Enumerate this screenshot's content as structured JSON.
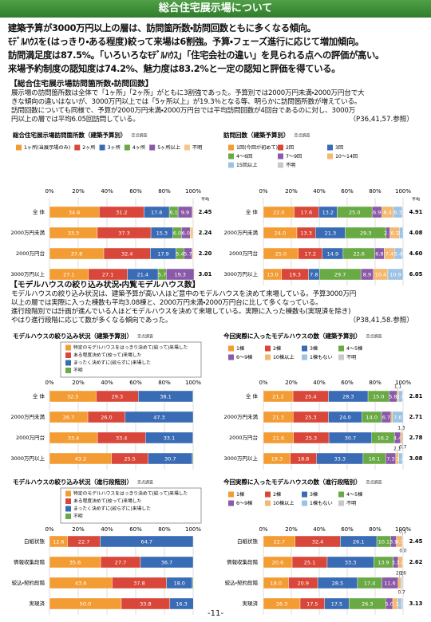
{
  "header": "総合住宅展示場について",
  "summary": [
    "建築予算が3000万円以上の層は、訪問箇所数・訪問回数ともに多くなる傾向。",
    "ﾓﾃﾞﾙﾊｳｽを(はっきり・ある程度)絞って来場は6割強。予算・フェーズ進行に応じて増加傾向。",
    "訪問満足度は87.5%。「いろいろなﾓﾃﾞﾙﾊｳｽ」「住宅会社の違い」を見られる点への評価が高い。",
    "来場予約制度の認知度は74.2%、魅力度は83.2%と一定の認知と評価を得ている。"
  ],
  "sections": [
    {
      "title": "【総合住宅展示場訪問箇所数・訪問回数】",
      "lines": [
        "展示場の訪問箇所数は全体で「1ヶ所」「2ヶ所」がともに3割強であった。予算別では2000万円未満・2000万円台で大",
        "きな傾向の違いはないが、3000万円以上では「5ヶ所以上」が19.3％となる等、明らかに訪問箇所数が増えている。",
        "訪問回数についても同様で、予算が2000万円未満・2000万円台では平均訪問回数が4回台であるのに対し、3000万",
        "円以上の層では平均6.05回訪問している。"
      ],
      "reference": "（P36,41,57.参照）"
    },
    {
      "title": "【モデルハウスの絞り込み状況・内覧モデルハウス数】",
      "lines": [
        "モデルハウスの絞り込み状況は、建築予算が高い人ほど意中のモデルハウスを決めて来場している。予算3000万円",
        "以上の層では実際に入った棟数も平均3.08棟と、2000万円未満・2000万円台に比して多くなっている。",
        "進行段階別では計画が進んでいる人ほどモデルハウスを決めて来場している。実際に入った棟数も(実現済を除き)",
        "やはり進行段階に応じて数が多くなる傾向であった。"
      ],
      "reference": "（P38,41,58.参照）"
    }
  ],
  "page_number": "-11-",
  "chart_data": [
    {
      "type": "bar",
      "orientation": "horizontal",
      "stacked": true,
      "grid": true,
      "title": "総合住宅展示場訪問箇所数（建築予算別）",
      "subtitle": "定点調査",
      "categories": [
        "全 体",
        "2000万円未満",
        "2000万円台",
        "3000万円以上"
      ],
      "xlim": [
        0,
        100
      ],
      "xticks": [
        {
          "value": 0,
          "label": "0%"
        },
        {
          "value": 20,
          "label": "20%"
        },
        {
          "value": 40,
          "label": "40%"
        },
        {
          "value": 60,
          "label": "60%"
        },
        {
          "value": 80,
          "label": "80%"
        },
        {
          "value": 100,
          "label": "100%"
        }
      ],
      "average_header": "平均",
      "averages": [
        "2.45",
        "2.24",
        "2.20",
        "3.01"
      ],
      "series": [
        {
          "name": "1ヶ所(当展示場のみ)",
          "color": "#f39c34",
          "values": [
            34.6,
            33.3,
            37.8,
            27.1
          ],
          "value_labels": [
            "34.6",
            "33.3",
            "37.8",
            "27.1"
          ]
        },
        {
          "name": "2ヶ所",
          "color": "#d9473a",
          "values": [
            31.2,
            37.3,
            32.4,
            27.1
          ],
          "value_labels": [
            "31.2",
            "37.3",
            "32.4",
            "27.1"
          ]
        },
        {
          "name": "3ヶ所",
          "color": "#3a6cb5",
          "values": [
            17.6,
            15.3,
            17.9,
            21.4
          ],
          "value_labels": [
            "17.6",
            "15.3",
            "17.9",
            "21.4"
          ]
        },
        {
          "name": "4ヶ所",
          "color": "#6aaa45",
          "values": [
            6.1,
            6.0,
            5.4,
            5.7
          ],
          "value_labels": [
            "6.1",
            "6.0",
            "5.4",
            "5.7"
          ]
        },
        {
          "name": "5ヶ所以上",
          "color": "#8a5aa8",
          "values": [
            9.9,
            6.0,
            5.7,
            19.3
          ],
          "value_labels": [
            "9.9",
            "6.0",
            "5.7",
            "19.3"
          ]
        },
        {
          "name": "不明",
          "color": "#f6c68a",
          "values": [
            0.6,
            2.1,
            0.8,
            0.4
          ],
          "value_labels": [
            null,
            null,
            null,
            null
          ]
        }
      ]
    },
    {
      "type": "bar",
      "orientation": "horizontal",
      "stacked": true,
      "grid": true,
      "title": "訪問回数（建築予算別）",
      "subtitle": "定点調査",
      "categories": [
        "全 体",
        "2000万円未満",
        "2000万円台",
        "3000万円以上"
      ],
      "xlim": [
        0,
        100
      ],
      "xticks": [
        {
          "value": 0,
          "label": "0%"
        },
        {
          "value": 20,
          "label": "20%"
        },
        {
          "value": 40,
          "label": "40%"
        },
        {
          "value": 60,
          "label": "60%"
        },
        {
          "value": 80,
          "label": "80%"
        },
        {
          "value": 100,
          "label": "100%"
        }
      ],
      "average_header": "平均",
      "averages": [
        "4.91",
        "4.08",
        "4.60",
        "6.05"
      ],
      "series": [
        {
          "name": "1回(今回が初めて)",
          "color": "#f39c34",
          "values": [
            22.0,
            24.0,
            25.0,
            13.0
          ],
          "value_labels": [
            "22.0",
            "24.0",
            "25.0",
            "13.0"
          ]
        },
        {
          "name": "2回",
          "color": "#d9473a",
          "values": [
            17.6,
            13.3,
            17.2,
            19.3
          ],
          "value_labels": [
            "17.6",
            "13.3",
            "17.2",
            "19.3"
          ]
        },
        {
          "name": "3回",
          "color": "#3a6cb5",
          "values": [
            13.2,
            21.3,
            14.9,
            7.8
          ],
          "value_labels": [
            "13.2",
            "21.3",
            "14.9",
            "7.8"
          ]
        },
        {
          "name": "4〜6回",
          "color": "#6aaa45",
          "values": [
            25.0,
            29.3,
            22.6,
            29.7
          ],
          "value_labels": [
            "25.0",
            "29.3",
            "22.6",
            "29.7"
          ]
        },
        {
          "name": "7〜9回",
          "color": "#8a5aa8",
          "values": [
            6.9,
            2.7,
            6.8,
            8.9
          ],
          "value_labels": [
            "6.9",
            "2.7",
            "6.8",
            "8.9"
          ]
        },
        {
          "name": "10〜14回",
          "color": "#f4b870",
          "values": [
            8.4,
            6.7,
            7.4,
            10.4
          ],
          "value_labels": [
            "8.4",
            "6.7",
            "7.4",
            "10.4"
          ]
        },
        {
          "name": "15回以上",
          "color": "#9cc3e6",
          "values": [
            6.3,
            2.7,
            5.4,
            10.9
          ],
          "value_labels": [
            "6.3",
            "2.7",
            "5.4",
            "10.9"
          ]
        },
        {
          "name": "不明",
          "color": "#c8c8c8",
          "values": [
            0.6,
            0,
            0.7,
            0
          ],
          "value_labels": [
            null,
            null,
            null,
            null
          ]
        }
      ]
    },
    {
      "type": "bar",
      "orientation": "horizontal",
      "stacked": true,
      "grid": true,
      "title": "モデルハウスの絞り込み状況（建築予算別）",
      "subtitle": "定点調査",
      "categories": [
        "全 体",
        "2000万円未満",
        "2000万円台",
        "3000万円以上"
      ],
      "xlim": [
        0,
        100
      ],
      "xticks": [
        {
          "value": 0,
          "label": "0%"
        },
        {
          "value": 20,
          "label": "20%"
        },
        {
          "value": 40,
          "label": "40%"
        },
        {
          "value": 60,
          "label": "60%"
        },
        {
          "value": 80,
          "label": "80%"
        },
        {
          "value": 100,
          "label": "100%"
        }
      ],
      "series": [
        {
          "name": "特定のモデルハウスをはっきり決めて(絞って)来場した",
          "color": "#f39c34",
          "values": [
            32.5,
            26.7,
            33.4,
            43.2
          ],
          "value_labels": [
            "32.5",
            "26.7",
            "33.4",
            "43.2"
          ]
        },
        {
          "name": "ある程度決めて(絞って)来場した",
          "color": "#d9473a",
          "values": [
            29.3,
            26.0,
            33.4,
            25.5
          ],
          "value_labels": [
            "29.3",
            "26.0",
            "33.4",
            "25.5"
          ]
        },
        {
          "name": "まったく決めずに(絞らずに)来場した",
          "color": "#3a6cb5",
          "values": [
            38.1,
            47.3,
            33.1,
            30.7
          ],
          "value_labels": [
            "38.1",
            "47.3",
            "33.1",
            "30.7"
          ]
        },
        {
          "name": "不明",
          "color": "#6aaa45",
          "values": [
            0.1,
            0,
            0.1,
            0.6
          ],
          "value_labels": [
            null,
            null,
            null,
            null
          ]
        }
      ]
    },
    {
      "type": "bar",
      "orientation": "horizontal",
      "stacked": true,
      "grid": true,
      "title": "今回実際に入ったモデルハウスの数（建築予算別）",
      "subtitle": "定点調査",
      "categories": [
        "全 体",
        "2000万円未満",
        "2000万円台",
        "3000万円以上"
      ],
      "xlim": [
        0,
        100
      ],
      "xticks": [
        {
          "value": 0,
          "label": "0%"
        },
        {
          "value": 20,
          "label": "20%"
        },
        {
          "value": 40,
          "label": "40%"
        },
        {
          "value": 60,
          "label": "60%"
        },
        {
          "value": 80,
          "label": "80%"
        },
        {
          "value": 100,
          "label": "100%"
        }
      ],
      "averages": [
        "2.81",
        "2.71",
        "2.78",
        "3.08"
      ],
      "series": [
        {
          "name": "1棟",
          "color": "#f39c34",
          "values": [
            21.2,
            21.3,
            21.6,
            19.3
          ],
          "value_labels": [
            "21.2",
            "21.3",
            "21.6",
            "19.3"
          ]
        },
        {
          "name": "2棟",
          "color": "#d9473a",
          "values": [
            25.4,
            25.3,
            25.3,
            18.8
          ],
          "value_labels": [
            "25.4",
            "25.3",
            "25.3",
            "18.8"
          ]
        },
        {
          "name": "3棟",
          "color": "#3a6cb5",
          "values": [
            28.3,
            24.0,
            30.7,
            33.3
          ],
          "value_labels": [
            "28.3",
            "24.0",
            "30.7",
            "33.3"
          ]
        },
        {
          "name": "4〜5棟",
          "color": "#6aaa45",
          "values": [
            15.0,
            14.0,
            16.2,
            16.1
          ],
          "value_labels": [
            "15.0",
            "14.0",
            "16.2",
            "16.1"
          ]
        },
        {
          "name": "6〜9棟",
          "color": "#8a5aa8",
          "values": [
            5.8,
            6.7,
            4.4,
            7.3
          ],
          "value_labels": [
            "5.8",
            "6.7",
            "4.4",
            "7.3"
          ]
        },
        {
          "name": "10棟以上",
          "color": "#f4b870",
          "values": [
            1.1,
            1.1,
            1.3,
            2.1
          ],
          "value_labels": [
            "1.1",
            null,
            "1.3",
            "2.1"
          ]
        },
        {
          "name": "1棟もない",
          "color": "#9cc3e6",
          "values": [
            2.8,
            7.6,
            0.7,
            2.6
          ],
          "value_labels": [
            "2.8",
            "7.6",
            "0.7",
            "2.6"
          ]
        },
        {
          "name": "不明",
          "color": "#c8c8c8",
          "values": [
            0.4,
            0,
            0,
            0.5
          ],
          "value_labels": [
            null,
            null,
            null,
            null
          ]
        }
      ]
    },
    {
      "type": "bar",
      "orientation": "horizontal",
      "stacked": true,
      "grid": true,
      "title": "モデルハウスの絞り込み状況（進行段階別）",
      "subtitle": "定点調査",
      "categories": [
        "白紙状態",
        "情報収集段階",
        "絞込・契約段階",
        "実現済"
      ],
      "xlim": [
        0,
        100
      ],
      "xticks": [
        {
          "value": 0,
          "label": "0%"
        },
        {
          "value": 20,
          "label": "20%"
        },
        {
          "value": 40,
          "label": "40%"
        },
        {
          "value": 60,
          "label": "60%"
        },
        {
          "value": 80,
          "label": "80%"
        },
        {
          "value": 100,
          "label": "100%"
        }
      ],
      "series": [
        {
          "name": "特定のモデルハウスをはっきり決めて(絞って)来場した",
          "color": "#f39c34",
          "values": [
            12.6,
            35.6,
            43.6,
            50.0
          ],
          "value_labels": [
            "12.6",
            "35.6",
            "43.6",
            "50.0"
          ]
        },
        {
          "name": "ある程度決めて(絞って)来場した",
          "color": "#d9473a",
          "values": [
            22.7,
            27.7,
            37.8,
            33.8
          ],
          "value_labels": [
            "22.7",
            "27.7",
            "37.8",
            "33.8"
          ]
        },
        {
          "name": "まったく決めずに(絞らずに)来場した",
          "color": "#3a6cb5",
          "values": [
            64.7,
            36.7,
            18.0,
            16.3
          ],
          "value_labels": [
            "64.7",
            "36.7",
            "18.0",
            "16.3"
          ]
        },
        {
          "name": "不明",
          "color": "#6aaa45",
          "values": [
            0,
            0,
            0.6,
            0
          ],
          "value_labels": [
            null,
            null,
            null,
            null
          ]
        }
      ]
    },
    {
      "type": "bar",
      "orientation": "horizontal",
      "stacked": true,
      "grid": true,
      "title": "今回実際に入ったモデルハウスの数（進行段階別）",
      "subtitle": "定点調査",
      "categories": [
        "白紙状態",
        "情報収集段階",
        "絞込・契約段階",
        "実現済"
      ],
      "xlim": [
        0,
        100
      ],
      "xticks": [
        {
          "value": 0,
          "label": "0%"
        },
        {
          "value": 20,
          "label": "20%"
        },
        {
          "value": 40,
          "label": "40%"
        },
        {
          "value": 60,
          "label": "60%"
        },
        {
          "value": 80,
          "label": "80%"
        },
        {
          "value": 100,
          "label": "100%"
        }
      ],
      "averages": [
        "2.45",
        "2.62",
        null,
        "3.13"
      ],
      "series": [
        {
          "name": "1棟",
          "color": "#f39c34",
          "values": [
            22.7,
            20.6,
            18.0,
            26.3
          ],
          "value_labels": [
            "22.7",
            "20.6",
            "18.0",
            "26.3"
          ]
        },
        {
          "name": "2棟",
          "color": "#d9473a",
          "values": [
            32.4,
            25.1,
            20.9,
            17.5
          ],
          "value_labels": [
            "32.4",
            "25.1",
            "20.9",
            "17.5"
          ]
        },
        {
          "name": "3棟",
          "color": "#3a6cb5",
          "values": [
            26.1,
            33.3,
            28.5,
            17.5
          ],
          "value_labels": [
            "26.1",
            "33.3",
            "28.5",
            "17.5"
          ]
        },
        {
          "name": "4〜5棟",
          "color": "#6aaa45",
          "values": [
            10.1,
            13.9,
            17.4,
            26.3
          ],
          "value_labels": [
            "10.1",
            "13.9",
            "17.4",
            "26.3"
          ]
        },
        {
          "name": "6〜9棟",
          "color": "#8a5aa8",
          "values": [
            3.9,
            3.7,
            11.6,
            5.0
          ],
          "value_labels": [
            "3.9",
            "3.7",
            "11.6",
            "5.0"
          ]
        },
        {
          "name": "10棟以上",
          "color": "#f4b870",
          "values": [
            4.3,
            3.0,
            2.2,
            3.8
          ],
          "value_labels": [
            "4.3",
            "3.0",
            "2.2",
            null
          ]
        },
        {
          "name": "1棟もない",
          "color": "#9cc3e6",
          "values": [
            0.5,
            0.4,
            0.7,
            2.5
          ],
          "value_labels": [
            "0.5",
            null,
            "0.7",
            "2.5"
          ]
        },
        {
          "name": "不明",
          "color": "#c8c8c8",
          "values": [
            0.0,
            0,
            0.6,
            1.1
          ],
          "value_labels": [
            "0.0",
            null,
            "0.6",
            null
          ]
        }
      ]
    }
  ]
}
